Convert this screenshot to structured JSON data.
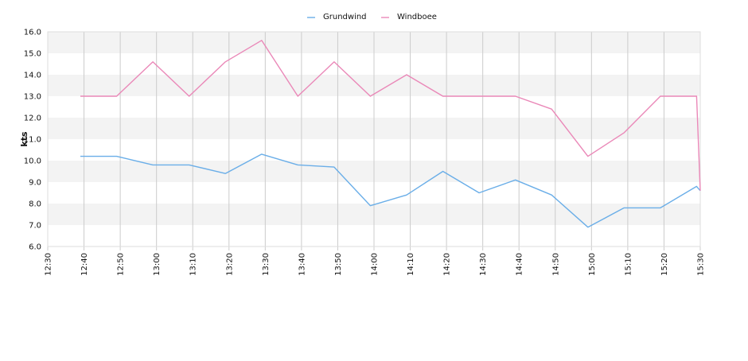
{
  "chart_data": {
    "type": "line",
    "ylabel": "kts",
    "ylim": [
      6.0,
      16.0
    ],
    "yticks": [
      "6.0",
      "7.0",
      "8.0",
      "9.0",
      "10.0",
      "11.0",
      "12.0",
      "13.0",
      "14.0",
      "15.0",
      "16.0"
    ],
    "xlim": [
      "12:30",
      "15:30"
    ],
    "xticks": [
      "12:30",
      "12:40",
      "12:50",
      "13:00",
      "13:10",
      "13:20",
      "13:30",
      "13:40",
      "13:50",
      "14:00",
      "14:10",
      "14:20",
      "14:30",
      "14:40",
      "14:50",
      "15:00",
      "15:10",
      "15:20",
      "15:30"
    ],
    "grid": "vertical lines and alternating horizontal bands",
    "legend": "top-center",
    "series": [
      {
        "name": "Grundwind",
        "color": "#6aaee8",
        "x": [
          "12:39",
          "12:49",
          "12:59",
          "13:09",
          "13:19",
          "13:29",
          "13:39",
          "13:49",
          "13:59",
          "14:09",
          "14:19",
          "14:29",
          "14:39",
          "14:49",
          "14:59",
          "15:09",
          "15:19",
          "15:29",
          "15:30"
        ],
        "values": [
          10.2,
          10.2,
          9.8,
          9.8,
          9.4,
          10.3,
          9.8,
          9.7,
          7.9,
          8.4,
          9.5,
          8.5,
          9.1,
          8.4,
          6.9,
          7.8,
          7.8,
          8.8,
          8.6
        ]
      },
      {
        "name": "Windboee",
        "color": "#ea88b8",
        "x": [
          "12:39",
          "12:49",
          "12:59",
          "13:09",
          "13:19",
          "13:29",
          "13:39",
          "13:49",
          "13:59",
          "14:09",
          "14:19",
          "14:29",
          "14:39",
          "14:49",
          "14:59",
          "15:09",
          "15:19",
          "15:29",
          "15:30"
        ],
        "values": [
          13.0,
          13.0,
          14.6,
          13.0,
          14.6,
          15.6,
          13.0,
          14.6,
          13.0,
          14.0,
          13.0,
          13.0,
          13.0,
          12.4,
          10.2,
          11.3,
          13.0,
          13.0,
          8.6
        ]
      }
    ]
  }
}
